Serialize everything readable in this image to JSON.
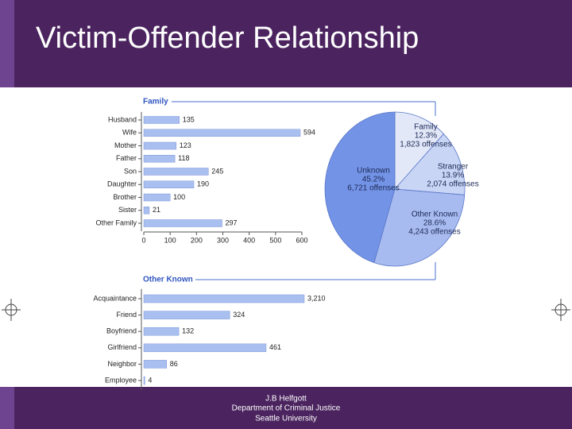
{
  "slide": {
    "title": "Victim-Offender Relationship",
    "footer": [
      "J.B Helfgott",
      "Department of Criminal Justice",
      "Seattle University"
    ]
  },
  "chart_data": [
    {
      "type": "bar",
      "orientation": "horizontal",
      "title": "Family",
      "categories": [
        "Husband",
        "Wife",
        "Mother",
        "Father",
        "Son",
        "Daughter",
        "Brother",
        "Sister",
        "Other Family"
      ],
      "values": [
        135,
        594,
        123,
        118,
        245,
        190,
        100,
        21,
        297
      ],
      "color": "#a9bff0",
      "xlim": [
        0,
        600
      ],
      "xticks": [
        0,
        100,
        200,
        300,
        400,
        500,
        600
      ]
    },
    {
      "type": "bar",
      "orientation": "horizontal",
      "title": "Other Known",
      "categories": [
        "Acquaintance",
        "Friend",
        "Boyfriend",
        "Girlfriend",
        "Neighbor",
        "Employee"
      ],
      "values": [
        3210,
        324,
        132,
        461,
        86,
        4
      ],
      "value_labels": [
        "3,210",
        "324",
        "132",
        "461",
        "86",
        "4"
      ],
      "color": "#a9bff0"
    },
    {
      "type": "pie",
      "categories": [
        "Family",
        "Stranger",
        "Other Known",
        "Unknown"
      ],
      "values": [
        12.3,
        13.9,
        28.6,
        45.2
      ],
      "value_labels": [
        "12.3%",
        "13.9%",
        "28.6%",
        "45.2%"
      ],
      "counts": [
        1823,
        2074,
        4243,
        6721
      ],
      "count_labels": [
        "1,823 offenses",
        "2,074 offenses",
        "4,243 offenses",
        "6,721 offenses"
      ],
      "colors": [
        "#e2e8f8",
        "#c9d5f5",
        "#a8bbf0",
        "#7393e6"
      ]
    }
  ]
}
